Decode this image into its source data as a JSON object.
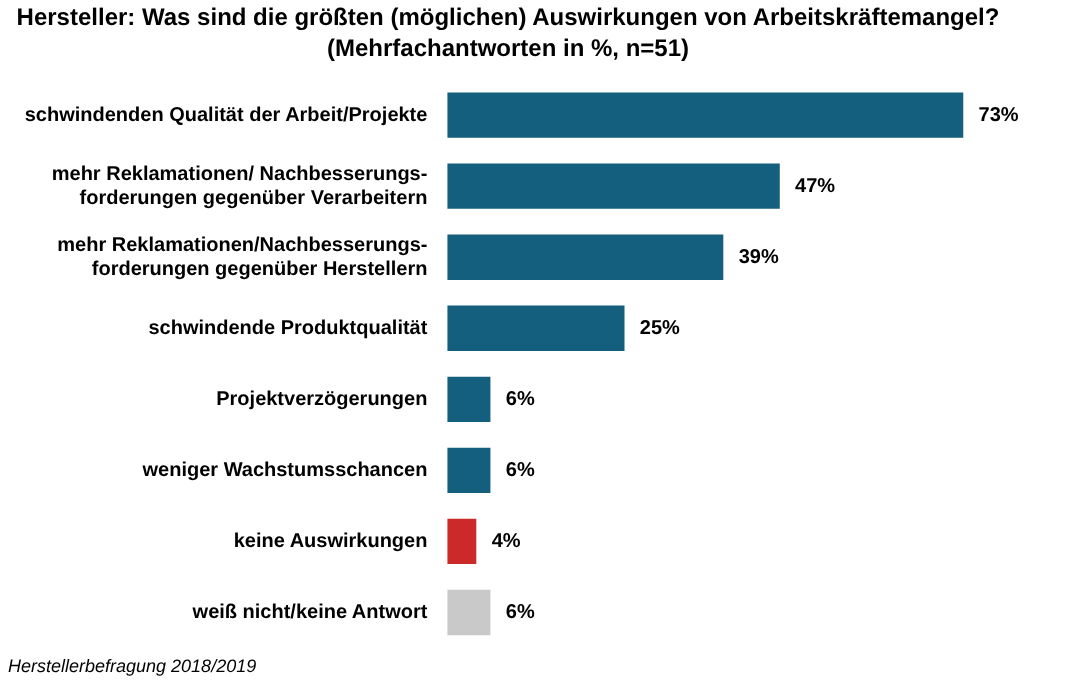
{
  "chart_data": {
    "type": "bar",
    "orientation": "horizontal",
    "title": "Hersteller: Was sind die größten (möglichen) Auswirkungen von Arbeitskräftemangel?",
    "subtitle": "(Mehrfachantworten in %, n=51)",
    "categories": [
      "schwindenden Qualität der Arbeit/Projekte",
      "mehr Reklamationen/ Nachbesserungs-\nforderungen gegenüber Verarbeitern",
      "mehr Reklamationen/Nachbesserungs-\nforderungen gegenüber Herstellern",
      "schwindende Produktqualität",
      "Projektverzögerungen",
      "weniger Wachstumsschancen",
      "keine Auswirkungen",
      "weiß nicht/keine Antwort"
    ],
    "values": [
      73,
      47,
      39,
      25,
      6,
      6,
      4,
      6
    ],
    "colors": [
      "#135f7d",
      "#135f7d",
      "#135f7d",
      "#135f7d",
      "#135f7d",
      "#135f7d",
      "#cc2a2a",
      "#c9c9c9"
    ],
    "value_labels": [
      "73%",
      "47%",
      "39%",
      "25%",
      "6%",
      "6%",
      "4%",
      "6%"
    ],
    "grid": false,
    "legend": false,
    "annotations": [
      "Herstellerbefragung 2018/2019"
    ]
  }
}
